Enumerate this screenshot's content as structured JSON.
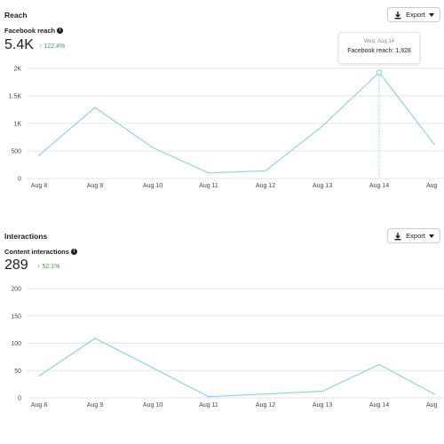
{
  "reach": {
    "title": "Reach",
    "export_label": "Export",
    "metric_label": "Facebook reach",
    "metric_value": "5.4K",
    "metric_change": "122.4%",
    "tooltip": {
      "date": "Wed, Aug 14",
      "text": "Facebook reach: 1,928"
    }
  },
  "interactions": {
    "title": "Interactions",
    "export_label": "Export",
    "metric_label": "Content interactions",
    "metric_value": "289",
    "metric_change": "52.1%"
  },
  "colors": {
    "line": "#8ad3ee",
    "grid": "#e4e6eb",
    "positive": "#31a24c"
  },
  "icons": {
    "export": "download-icon",
    "dropdown": "caret-down-icon",
    "info": "info-icon",
    "change": "arrow-up-icon"
  },
  "chart_data": [
    {
      "type": "line",
      "name": "reach-chart",
      "categories": [
        "Aug 8",
        "Aug 9",
        "Aug 10",
        "Aug 11",
        "Aug 12",
        "Aug 13",
        "Aug 14",
        "Aug"
      ],
      "values": [
        420,
        1290,
        560,
        100,
        140,
        950,
        1928,
        620
      ],
      "yticks": [
        "2K",
        "1.5K",
        "1K",
        "500",
        "0"
      ],
      "ylim": [
        0,
        2000
      ],
      "highlight_index": 6,
      "grid": true
    },
    {
      "type": "line",
      "name": "interactions-chart",
      "categories": [
        "Aug 8",
        "Aug 9",
        "Aug 10",
        "Aug 11",
        "Aug 12",
        "Aug 13",
        "Aug 14",
        "Aug"
      ],
      "values": [
        40,
        109,
        55,
        2,
        7,
        12,
        61,
        7
      ],
      "yticks": [
        "200",
        "150",
        "100",
        "50",
        "0"
      ],
      "ylim": [
        0,
        200
      ],
      "grid": true
    }
  ]
}
